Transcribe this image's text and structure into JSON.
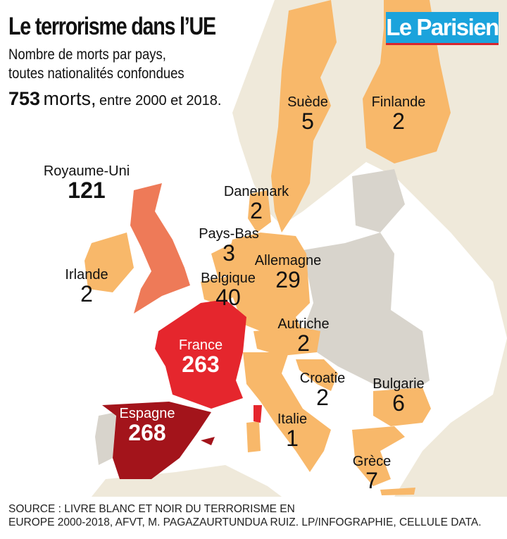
{
  "header": {
    "title": "Le terrorisme dans l’UE",
    "subtitle_line1": "Nombre de morts par pays,",
    "subtitle_line2": "toutes nationalités confondues",
    "total_value": "753",
    "total_unit": "morts,",
    "total_range": "entre 2000 et 2018."
  },
  "logo": "Le Parisien",
  "colors": {
    "sea": "#ffffff",
    "other_land": "#efe9da",
    "non_listed_eu": "#d8d4cc",
    "low": "#f8b86a",
    "uk": "#ee7a58",
    "france": "#e5262d",
    "spain": "#a3141b"
  },
  "countries": [
    {
      "name": "Suède",
      "deaths": "5"
    },
    {
      "name": "Finlande",
      "deaths": "2"
    },
    {
      "name": "Royaume-Uni",
      "deaths": "121"
    },
    {
      "name": "Danemark",
      "deaths": "2"
    },
    {
      "name": "Pays-Bas",
      "deaths": "3"
    },
    {
      "name": "Allemagne",
      "deaths": "29"
    },
    {
      "name": "Irlande",
      "deaths": "2"
    },
    {
      "name": "Belgique",
      "deaths": "40"
    },
    {
      "name": "Autriche",
      "deaths": "2"
    },
    {
      "name": "France",
      "deaths": "263"
    },
    {
      "name": "Croatie",
      "deaths": "2"
    },
    {
      "name": "Bulgarie",
      "deaths": "6"
    },
    {
      "name": "Espagne",
      "deaths": "268"
    },
    {
      "name": "Italie",
      "deaths": "1"
    },
    {
      "name": "Grèce",
      "deaths": "7"
    }
  ],
  "source_line1": "SOURCE : LIVRE BLANC ET NOIR DU TERRORISME EN",
  "source_line2": "EUROPE 2000-2018, AFVT, M. PAGAZAURTUNDUA RUIZ. LP/INFOGRAPHIE, CELLULE DATA."
}
